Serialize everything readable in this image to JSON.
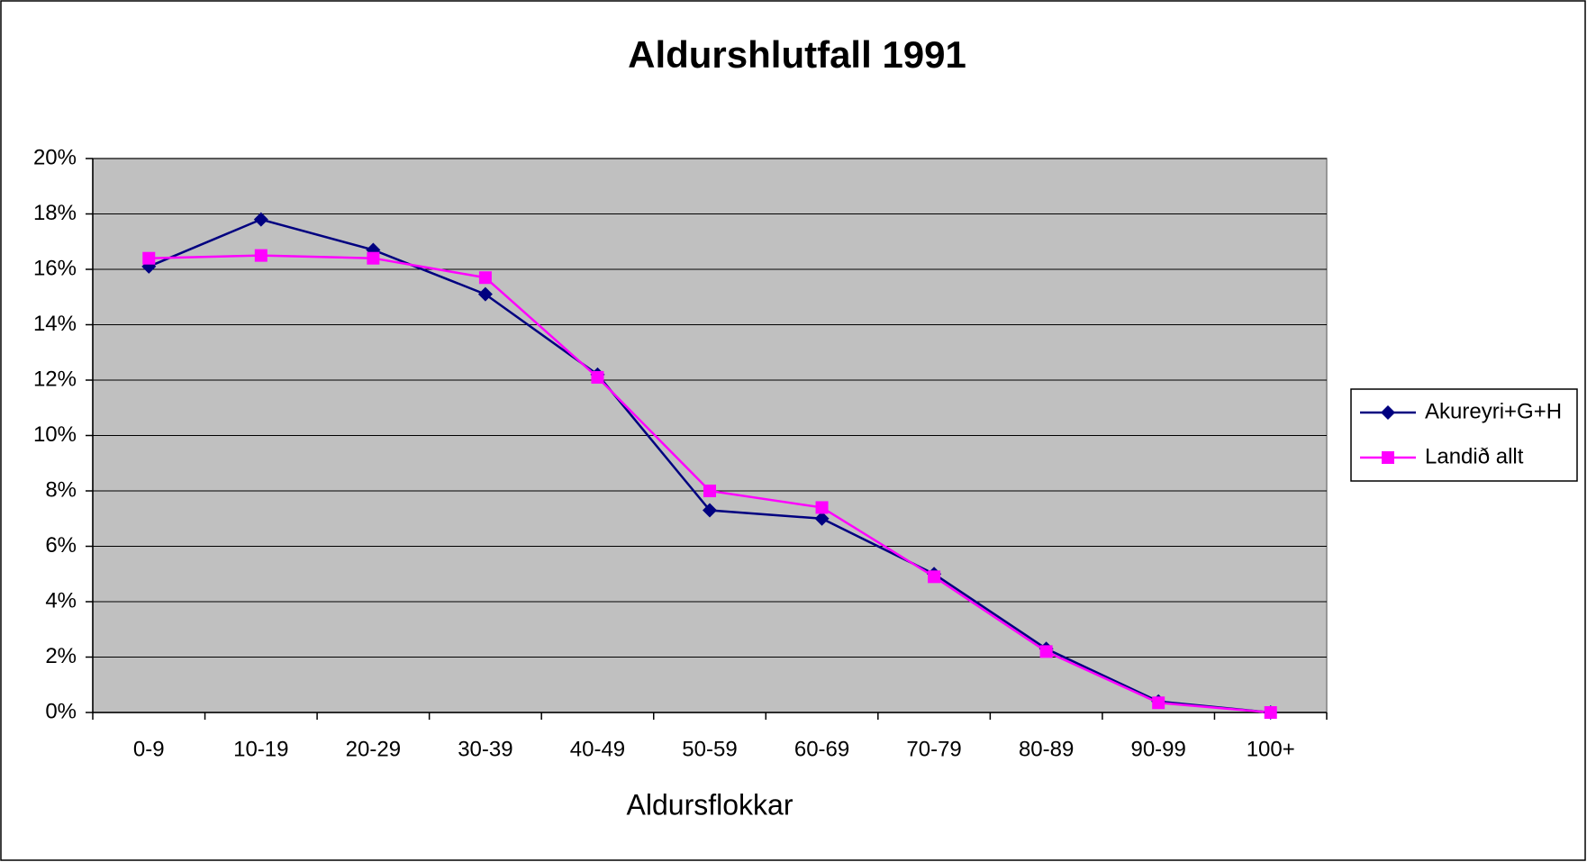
{
  "chart_data": {
    "type": "line",
    "title": "Aldurshlutfall 1991",
    "x_label": "Aldursflokkar",
    "categories": [
      "0-9",
      "10-19",
      "20-29",
      "30-39",
      "40-49",
      "50-59",
      "60-69",
      "70-79",
      "80-89",
      "90-99",
      "100+"
    ],
    "series": [
      {
        "name": "Akureyri+G+H",
        "color": "#000080",
        "marker": "diamond",
        "values": [
          16.1,
          17.8,
          16.7,
          15.1,
          12.2,
          7.3,
          7.0,
          5.0,
          2.3,
          0.4,
          0.0
        ]
      },
      {
        "name": "Landið allt",
        "color": "#ff00ff",
        "marker": "square",
        "values": [
          16.4,
          16.5,
          16.4,
          15.7,
          12.1,
          8.0,
          7.4,
          4.9,
          2.2,
          0.35,
          0.0
        ]
      }
    ],
    "ylim": [
      0,
      20
    ],
    "yticks": [
      {
        "value": 0,
        "label": "0%"
      },
      {
        "value": 2,
        "label": "2%"
      },
      {
        "value": 4,
        "label": "4%"
      },
      {
        "value": 6,
        "label": "6%"
      },
      {
        "value": 8,
        "label": "8%"
      },
      {
        "value": 10,
        "label": "10%"
      },
      {
        "value": 12,
        "label": "12%"
      },
      {
        "value": 14,
        "label": "14%"
      },
      {
        "value": 16,
        "label": "16%"
      },
      {
        "value": 18,
        "label": "18%"
      },
      {
        "value": 20,
        "label": "20%"
      }
    ],
    "grid": true,
    "legend": "right",
    "plot_background": "#c0c0c0"
  }
}
